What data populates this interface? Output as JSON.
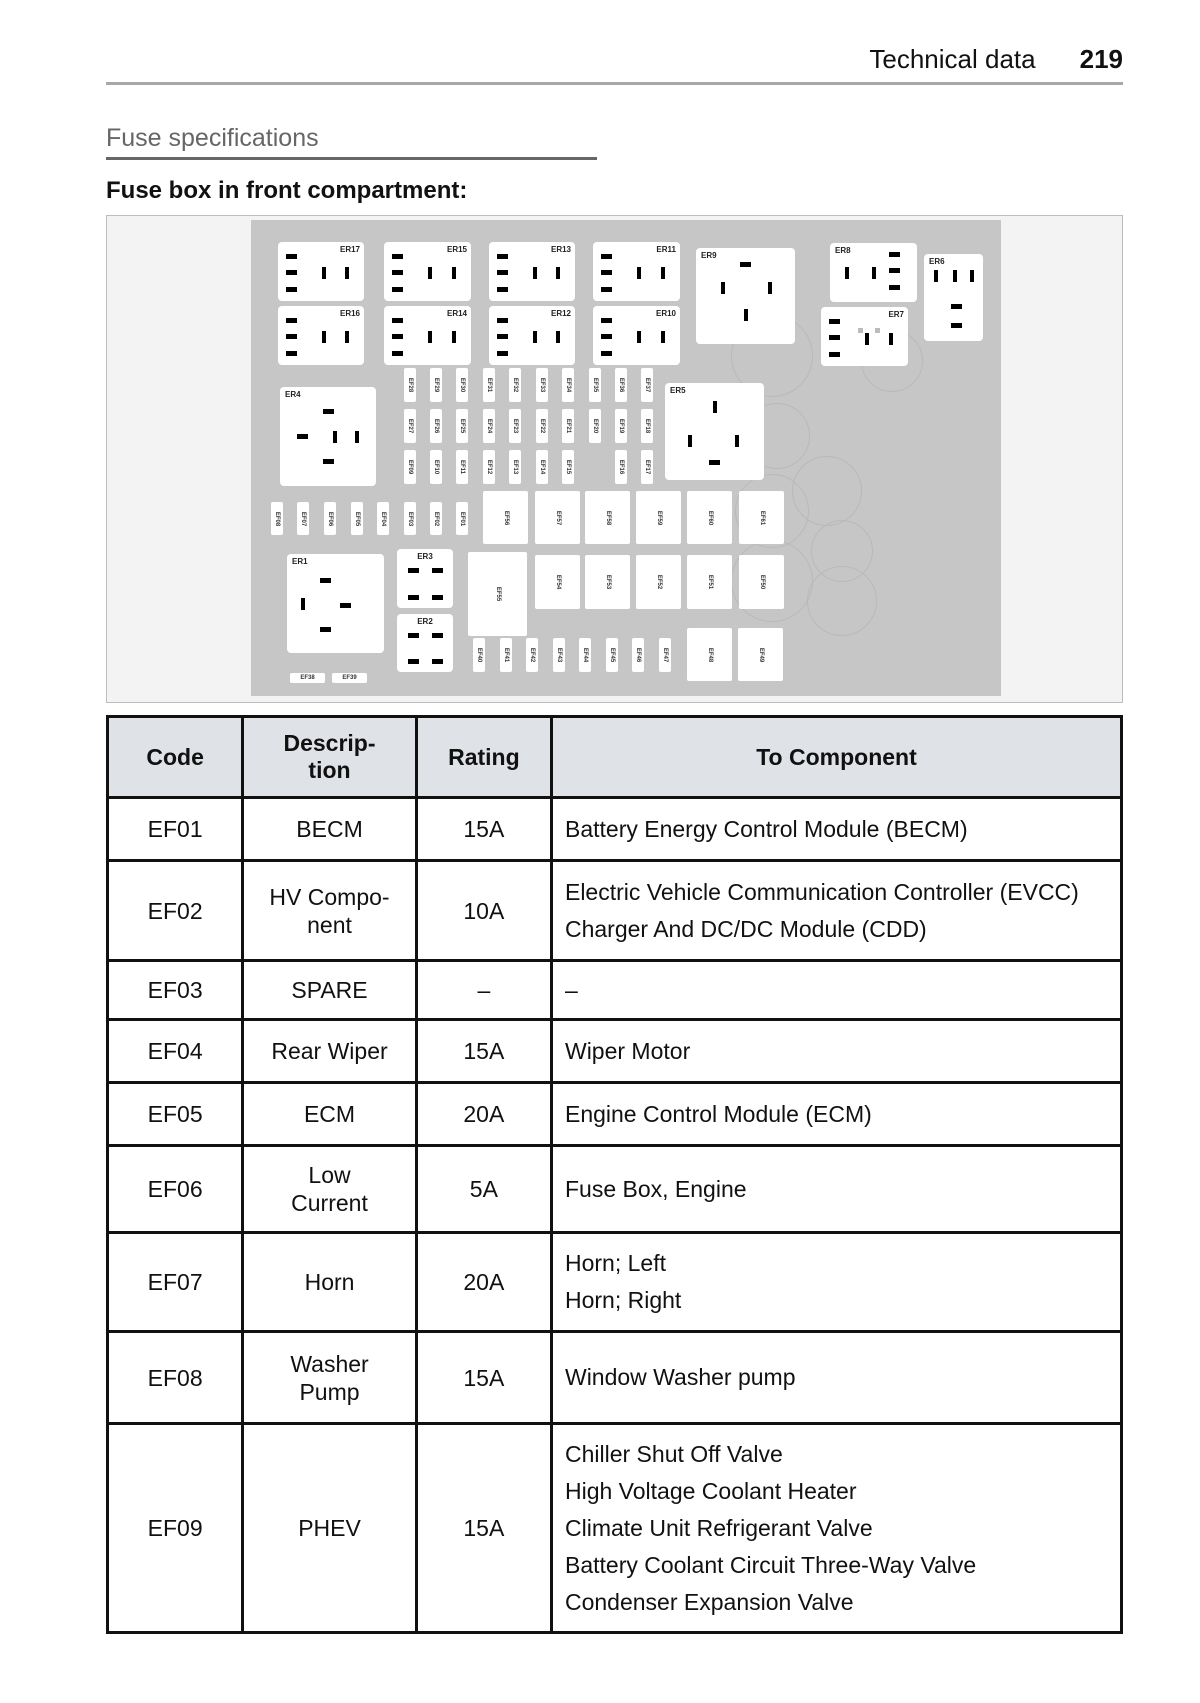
{
  "header": {
    "section": "Technical data",
    "page": "219"
  },
  "section_title": "Fuse specifications",
  "subtitle": "Fuse box in front compartment:",
  "diagram": {
    "relays": [
      "ER17",
      "ER15",
      "ER13",
      "ER11",
      "ER16",
      "ER14",
      "ER12",
      "ER10",
      "ER9",
      "ER8",
      "ER7",
      "ER6",
      "ER4",
      "ER5",
      "ER1",
      "ER3",
      "ER2"
    ],
    "fuses_row1": [
      "EF28",
      "EF29",
      "EF30",
      "EF31",
      "EF32",
      "EF33",
      "EF34",
      "EF35",
      "EF36",
      "EF37"
    ],
    "fuses_row2": [
      "EF27",
      "EF26",
      "EF25",
      "EF24",
      "EF23",
      "EF22",
      "EF21",
      "EF20",
      "EF19",
      "EF18"
    ],
    "fuses_row3": [
      "EF09",
      "EF10",
      "EF11",
      "EF12",
      "EF13",
      "EF14",
      "EF15",
      "EF16",
      "EF17"
    ],
    "fuses_row4": [
      "EF08",
      "EF07",
      "EF06",
      "EF05",
      "EF04",
      "EF03",
      "EF02",
      "EF01"
    ],
    "fuses_large_row1": [
      "EF56",
      "EF57",
      "EF58",
      "EF59",
      "EF60",
      "EF61"
    ],
    "fuses_large_row2": [
      "EF55",
      "EF54",
      "EF53",
      "EF52",
      "EF51",
      "EF50"
    ],
    "fuses_row5": [
      "EF40",
      "EF41",
      "EF42",
      "EF43",
      "EF44",
      "EF45",
      "EF46",
      "EF47"
    ],
    "fuses_large_row3": [
      "EF48",
      "EF49"
    ],
    "fuses_bottom": [
      "EF38",
      "EF39"
    ]
  },
  "table": {
    "headers": [
      "Code",
      "Descrip-\ntion",
      "Rating",
      "To Component"
    ],
    "rows": [
      {
        "code": "EF01",
        "description": "BECM",
        "rating": "15A",
        "components": [
          "Battery Energy Control Module (BECM)"
        ]
      },
      {
        "code": "EF02",
        "description": "HV Compo-\nnent",
        "rating": "10A",
        "components": [
          "Electric Vehicle Communication Controller (EVCC)",
          "Charger And DC/DC Module (CDD)"
        ]
      },
      {
        "code": "EF03",
        "description": "SPARE",
        "rating": "–",
        "components": [
          "–"
        ]
      },
      {
        "code": "EF04",
        "description": "Rear Wiper",
        "rating": "15A",
        "components": [
          "Wiper Motor"
        ]
      },
      {
        "code": "EF05",
        "description": "ECM",
        "rating": "20A",
        "components": [
          "Engine Control Module (ECM)"
        ]
      },
      {
        "code": "EF06",
        "description": "Low\nCurrent",
        "rating": "5A",
        "components": [
          "Fuse Box, Engine"
        ]
      },
      {
        "code": "EF07",
        "description": "Horn",
        "rating": "20A",
        "components": [
          "Horn; Left",
          "Horn; Right"
        ]
      },
      {
        "code": "EF08",
        "description": "Washer\nPump",
        "rating": "15A",
        "components": [
          "Window Washer pump"
        ]
      },
      {
        "code": "EF09",
        "description": "PHEV",
        "rating": "15A",
        "components": [
          "Chiller Shut Off Valve",
          "High Voltage Coolant Heater",
          "Climate Unit Refrigerant Valve",
          "Battery Coolant Circuit Three-Way Valve",
          "Condenser Expansion Valve"
        ]
      }
    ]
  }
}
